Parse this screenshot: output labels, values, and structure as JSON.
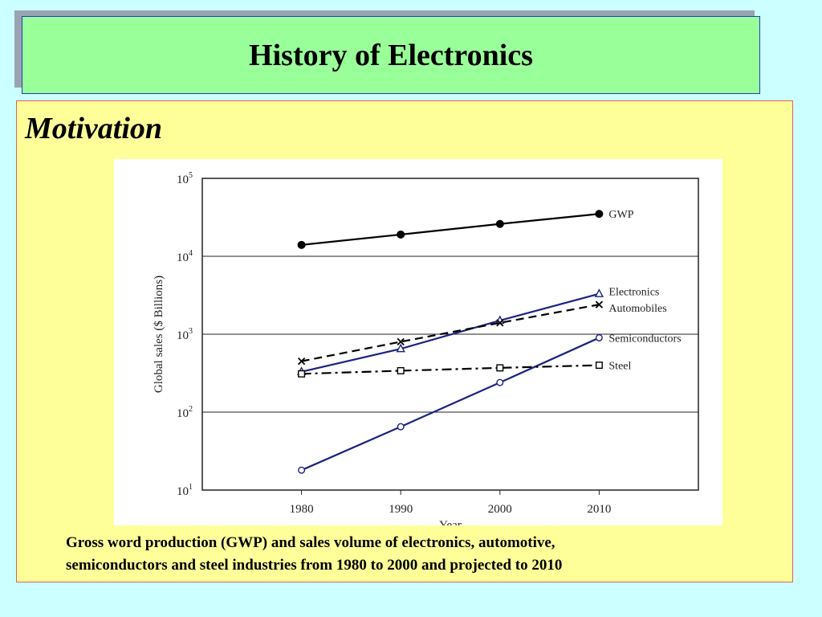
{
  "slide": {
    "title": "History of Electronics",
    "subtitle": "Motivation",
    "caption_line1": "Gross word production (GWP) and sales volume of electronics, automotive,",
    "caption_line2": "semiconductors and steel industries from 1980 to 2000 and projected to 2010"
  },
  "colors": {
    "background": "#ccffff",
    "title_fill": "#99ff99",
    "content_fill": "#ffff99",
    "line_dark": "#000000",
    "line_blue": "#1a237e"
  },
  "chart_data": {
    "type": "line",
    "xlabel": "Year",
    "ylabel": "Global sales ($ Billions)",
    "x": [
      1980,
      1990,
      2000,
      2010
    ],
    "xticks": [
      "1980",
      "1990",
      "2000",
      "2010"
    ],
    "y_scale": "log",
    "ylim": [
      10,
      100000
    ],
    "yticks": [
      {
        "value": 10,
        "base": "10",
        "exp": "1"
      },
      {
        "value": 100,
        "base": "10",
        "exp": "2"
      },
      {
        "value": 1000,
        "base": "10",
        "exp": "3"
      },
      {
        "value": 10000,
        "base": "10",
        "exp": "4"
      },
      {
        "value": 100000,
        "base": "10",
        "exp": "5"
      }
    ],
    "grid": "horizontal",
    "series": [
      {
        "name": "GWP",
        "values": [
          14000,
          19000,
          26000,
          35000
        ],
        "marker": "filled-circle",
        "dash": "solid",
        "color": "#000000"
      },
      {
        "name": "Electronics",
        "values": [
          330,
          650,
          1500,
          3300
        ],
        "marker": "triangle",
        "dash": "solid",
        "color": "#1a237e"
      },
      {
        "name": "Automobiles",
        "values": [
          450,
          800,
          1400,
          2400
        ],
        "marker": "x",
        "dash": "dashed",
        "color": "#000000"
      },
      {
        "name": "Semiconductors",
        "values": [
          18,
          65,
          240,
          900
        ],
        "marker": "open-circle",
        "dash": "solid",
        "color": "#1a237e"
      },
      {
        "name": "Steel",
        "values": [
          310,
          340,
          370,
          400
        ],
        "marker": "open-square",
        "dash": "dashdot",
        "color": "#000000"
      }
    ]
  }
}
